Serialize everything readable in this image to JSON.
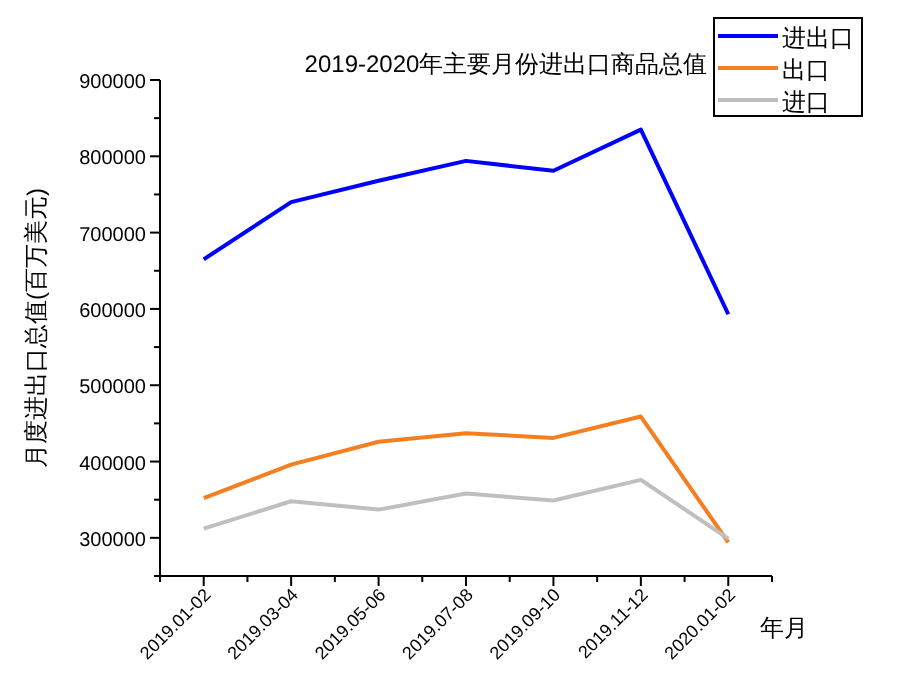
{
  "chart_data": {
    "type": "line",
    "title": "2019-2020年主要月份进出口商品总值",
    "xlabel": "年月",
    "ylabel": "月度进出口总值(百万美元)",
    "categories": [
      "2019.01-02",
      "2019.03-04",
      "2019.05-06",
      "2019.07-08",
      "2019.09-10",
      "2019.11-12",
      "2020.01-02"
    ],
    "series": [
      {
        "name": "进出口",
        "color": "#0000ff",
        "values": [
          665000,
          740000,
          768000,
          794000,
          781000,
          835000,
          593000
        ]
      },
      {
        "name": "出口",
        "color": "#f47f20",
        "values": [
          352000,
          396000,
          426000,
          437000,
          431000,
          459000,
          294000
        ]
      },
      {
        "name": "进口",
        "color": "#bfbfbf",
        "values": [
          312000,
          348000,
          337000,
          358000,
          349000,
          376000,
          299000
        ]
      }
    ],
    "ylim": [
      250000,
      900000
    ],
    "yticks": [
      300000,
      400000,
      500000,
      600000,
      700000,
      800000,
      900000
    ],
    "grid": false,
    "legend": "top right",
    "marker": "none",
    "line_style": "solid"
  }
}
